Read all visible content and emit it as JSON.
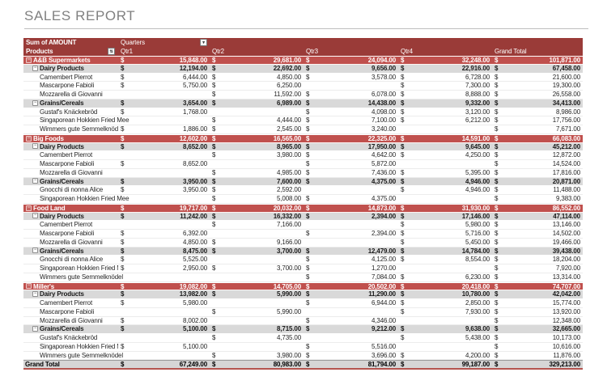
{
  "page": {
    "title": "SALES REPORT"
  },
  "icons": {
    "quarters_dropdown": "▼",
    "products_filter": "⇅",
    "collapse": "−"
  },
  "colors": {
    "header_bg": "#9a3b38",
    "retailer_band_bg": "#c0504d",
    "category_band_bg": "#d9d9d9",
    "grand_total_bg": "#d6d6d6",
    "title_text": "#808080"
  },
  "pivot": {
    "field_caption": "Sum of AMOUNT",
    "column_field": "Quarters",
    "row_field": "Products",
    "currency_symbol": "$",
    "columns": [
      "Qtr1",
      "Qtr2",
      "Qtr3",
      "Qtr4",
      "Grand Total"
    ],
    "rows": [
      {
        "label": "A&B Supermarkets",
        "level": 0,
        "values": [
          "15,848.00",
          "29,681.00",
          "24,094.00",
          "32,248.00",
          "101,871.00"
        ]
      },
      {
        "label": "Dairy Products",
        "level": 1,
        "values": [
          "12,194.00",
          "22,692.00",
          "9,656.00",
          "22,916.00",
          "67,458.00"
        ]
      },
      {
        "label": "Camembert Pierrot",
        "level": 2,
        "values": [
          "6,444.00",
          "4,850.00",
          "3,578.00",
          "6,728.00",
          "21,600.00"
        ]
      },
      {
        "label": "Mascarpone Fabioli",
        "level": 2,
        "values": [
          "5,750.00",
          "6,250.00",
          "",
          "7,300.00",
          "19,300.00"
        ]
      },
      {
        "label": "Mozzarella di Giovanni",
        "level": 2,
        "values": [
          "",
          "11,592.00",
          "6,078.00",
          "8,888.00",
          "26,558.00"
        ]
      },
      {
        "label": "Grains/Cereals",
        "level": 1,
        "values": [
          "3,654.00",
          "6,989.00",
          "14,438.00",
          "9,332.00",
          "34,413.00"
        ]
      },
      {
        "label": "Gustaf's Knäckebröd",
        "level": 2,
        "values": [
          "1,768.00",
          "",
          "4,098.00",
          "3,120.00",
          "8,986.00"
        ]
      },
      {
        "label": "Singaporean Hokkien Fried Mee",
        "level": 2,
        "values": [
          "",
          "4,444.00",
          "7,100.00",
          "6,212.00",
          "17,756.00"
        ]
      },
      {
        "label": "Wimmers gute Semmelknödel",
        "level": 2,
        "values": [
          "1,886.00",
          "2,545.00",
          "3,240.00",
          "",
          "7,671.00"
        ]
      },
      {
        "label": "Big Foods",
        "level": 0,
        "values": [
          "12,602.00",
          "16,565.00",
          "22,325.00",
          "14,591.00",
          "66,083.00"
        ]
      },
      {
        "label": "Dairy Products",
        "level": 1,
        "values": [
          "8,652.00",
          "8,965.00",
          "17,950.00",
          "9,645.00",
          "45,212.00"
        ]
      },
      {
        "label": "Camembert Pierrot",
        "level": 2,
        "values": [
          "",
          "3,980.00",
          "4,642.00",
          "4,250.00",
          "12,872.00"
        ]
      },
      {
        "label": "Mascarpone Fabioli",
        "level": 2,
        "values": [
          "8,652.00",
          "",
          "5,872.00",
          "",
          "14,524.00"
        ]
      },
      {
        "label": "Mozzarella di Giovanni",
        "level": 2,
        "values": [
          "",
          "4,985.00",
          "7,436.00",
          "5,395.00",
          "17,816.00"
        ]
      },
      {
        "label": "Grains/Cereals",
        "level": 1,
        "values": [
          "3,950.00",
          "7,600.00",
          "4,375.00",
          "4,946.00",
          "20,871.00"
        ]
      },
      {
        "label": "Gnocchi di nonna Alice",
        "level": 2,
        "values": [
          "3,950.00",
          "2,592.00",
          "",
          "4,946.00",
          "11,488.00"
        ]
      },
      {
        "label": "Singaporean Hokkien Fried Mee",
        "level": 2,
        "values": [
          "",
          "5,008.00",
          "4,375.00",
          "",
          "9,383.00"
        ]
      },
      {
        "label": "Food Land",
        "level": 0,
        "values": [
          "19,717.00",
          "20,032.00",
          "14,873.00",
          "31,930.00",
          "86,552.00"
        ]
      },
      {
        "label": "Dairy Products",
        "level": 1,
        "values": [
          "11,242.00",
          "16,332.00",
          "2,394.00",
          "17,146.00",
          "47,114.00"
        ]
      },
      {
        "label": "Camembert Pierrot",
        "level": 2,
        "values": [
          "",
          "7,166.00",
          "",
          "5,980.00",
          "13,146.00"
        ]
      },
      {
        "label": "Mascarpone Fabioli",
        "level": 2,
        "values": [
          "6,392.00",
          "",
          "2,394.00",
          "5,716.00",
          "14,502.00"
        ]
      },
      {
        "label": "Mozzarella di Giovanni",
        "level": 2,
        "values": [
          "4,850.00",
          "9,166.00",
          "",
          "5,450.00",
          "19,466.00"
        ]
      },
      {
        "label": "Grains/Cereals",
        "level": 1,
        "values": [
          "8,475.00",
          "3,700.00",
          "12,479.00",
          "14,784.00",
          "39,438.00"
        ]
      },
      {
        "label": "Gnocchi di nonna Alice",
        "level": 2,
        "values": [
          "5,525.00",
          "",
          "4,125.00",
          "8,554.00",
          "18,204.00"
        ]
      },
      {
        "label": "Singaporean Hokkien Fried Mee",
        "level": 2,
        "values": [
          "2,950.00",
          "3,700.00",
          "1,270.00",
          "",
          "7,920.00"
        ]
      },
      {
        "label": "Wimmers gute Semmelknödel",
        "level": 2,
        "values": [
          "",
          "",
          "7,084.00",
          "6,230.00",
          "13,314.00"
        ]
      },
      {
        "label": "Miller's",
        "level": 0,
        "values": [
          "19,082.00",
          "14,705.00",
          "20,502.00",
          "20,418.00",
          "74,707.00"
        ]
      },
      {
        "label": "Dairy Products",
        "level": 1,
        "values": [
          "13,982.00",
          "5,990.00",
          "11,290.00",
          "10,780.00",
          "42,042.00"
        ]
      },
      {
        "label": "Camembert Pierrot",
        "level": 2,
        "values": [
          "5,980.00",
          "",
          "6,944.00",
          "2,850.00",
          "15,774.00"
        ]
      },
      {
        "label": "Mascarpone Fabioli",
        "level": 2,
        "values": [
          "",
          "5,990.00",
          "",
          "7,930.00",
          "13,920.00"
        ]
      },
      {
        "label": "Mozzarella di Giovanni",
        "level": 2,
        "values": [
          "8,002.00",
          "",
          "4,346.00",
          "",
          "12,348.00"
        ]
      },
      {
        "label": "Grains/Cereals",
        "level": 1,
        "values": [
          "5,100.00",
          "8,715.00",
          "9,212.00",
          "9,638.00",
          "32,665.00"
        ]
      },
      {
        "label": "Gustaf's Knäckebröd",
        "level": 2,
        "values": [
          "",
          "4,735.00",
          "",
          "5,438.00",
          "10,173.00"
        ]
      },
      {
        "label": "Singaporean Hokkien Fried Mee",
        "level": 2,
        "values": [
          "5,100.00",
          "",
          "5,516.00",
          "",
          "10,616.00"
        ]
      },
      {
        "label": "Wimmers gute Semmelknödel",
        "level": 2,
        "values": [
          "",
          "3,980.00",
          "3,696.00",
          "4,200.00",
          "11,876.00"
        ]
      }
    ],
    "grand_total": {
      "label": "Grand Total",
      "values": [
        "67,249.00",
        "80,983.00",
        "81,794.00",
        "99,187.00",
        "329,213.00"
      ]
    }
  }
}
